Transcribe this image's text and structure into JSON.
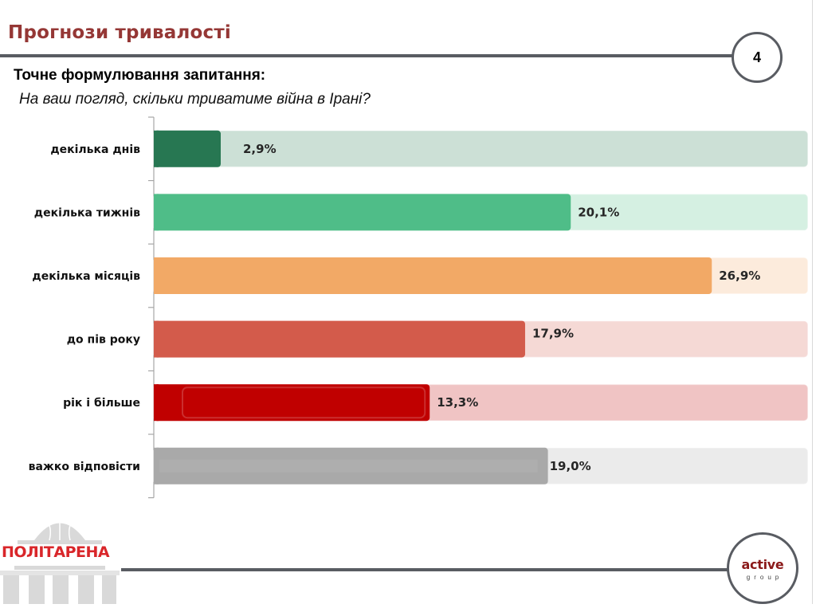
{
  "header": {
    "title": "Прогнози тривалості",
    "page_number": "4"
  },
  "question": {
    "label": "Точне формулювання запитання:",
    "text": "На ваш погляд, скільки триватиме війна в Ірані?"
  },
  "chart_data": {
    "type": "bar",
    "orientation": "horizontal",
    "title": "На ваш погляд, скільки триватиме війна в Ірані?",
    "xlabel": "",
    "ylabel": "",
    "categories": [
      "декілька днів",
      "декілька тижнів",
      "декілька місяців",
      "до пів року",
      "рік і більше",
      "важко відповісти"
    ],
    "values": [
      2.9,
      20.1,
      26.9,
      17.9,
      13.3,
      19.0
    ],
    "value_labels": [
      "2,9%",
      "20,1%",
      "26,9%",
      "17,9%",
      "13,3%",
      "19,0%"
    ],
    "unit": "%",
    "xlim": [
      0,
      31.5
    ],
    "grid": false,
    "colors": [
      "#277752",
      "#4fbd88",
      "#f2a966",
      "#d35b4b",
      "#c00000",
      "#a9a9a9"
    ],
    "track_colors": [
      "#cce0d6",
      "#d5f0e2",
      "#fcebdc",
      "#f5d9d5",
      "#f0c4c4",
      "#ebebeb"
    ]
  },
  "footer": {
    "left_logo_text": "ПОЛІТАРЕНА",
    "right_logo_main": "active",
    "right_logo_sub": "group"
  },
  "colors": {
    "title": "#953735",
    "rule": "#595c62"
  }
}
